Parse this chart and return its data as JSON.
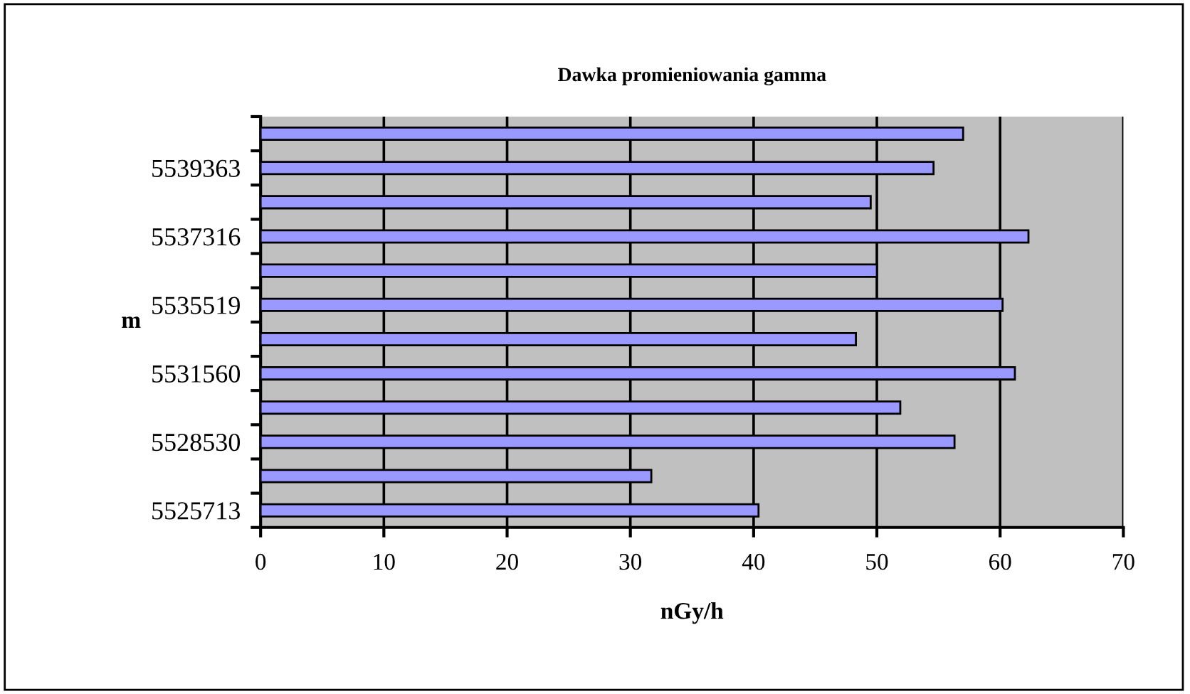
{
  "chart_data": {
    "type": "bar",
    "orientation": "horizontal",
    "title": "Dawka promieniowania gamma",
    "xlabel": "nGy/h",
    "ylabel": "m",
    "categories": [
      null,
      "5539363",
      null,
      "5537316",
      null,
      "5535519",
      null,
      "5531560",
      null,
      "5528530",
      null,
      "5525713"
    ],
    "series": [
      {
        "color": "#9999ff",
        "values": [
          57,
          54.6,
          49.5,
          62.3,
          50,
          60.2,
          48.3,
          61.2,
          51.9,
          56.3,
          31.7,
          40.4
        ]
      }
    ],
    "xlim": [
      0,
      70
    ],
    "xticks": [
      0,
      10,
      20,
      30,
      40,
      50,
      60,
      70
    ],
    "grid": "x",
    "legend": false
  }
}
